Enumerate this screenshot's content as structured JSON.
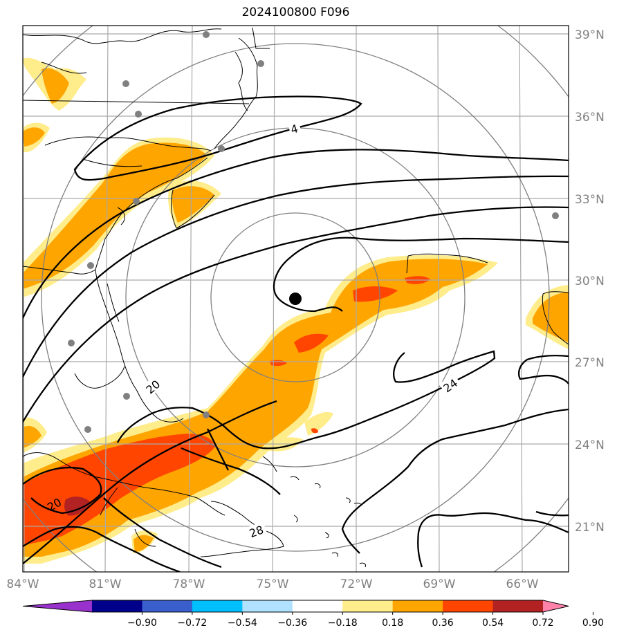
{
  "title": "2024100800 F096",
  "map": {
    "lon_ticks": [
      "84°W",
      "81°W",
      "78°W",
      "75°W",
      "72°W",
      "69°W",
      "66°W"
    ],
    "lat_ticks": [
      "39°N",
      "36°N",
      "33°N",
      "30°N",
      "27°N",
      "24°N",
      "21°N"
    ],
    "center_marker": {
      "lon": -74.2,
      "lat": 29.2
    },
    "contour_labels": [
      "4",
      "20",
      "24",
      "28",
      "20"
    ],
    "grid": true
  },
  "colorbar": {
    "ticks": [
      "−0.90",
      "−0.72",
      "−0.54",
      "−0.36",
      "−0.18",
      "0.18",
      "0.36",
      "0.54",
      "0.72",
      "0.90"
    ],
    "colors": [
      "#9932CC",
      "#00008B",
      "#3A5FCD",
      "#00BFFF",
      "#B0E2FF",
      "#FFFFFF",
      "#FFEC8B",
      "#FFA500",
      "#FF4500",
      "#B22222",
      "#FF82AB"
    ]
  },
  "colors": {
    "field_light": "#FFEC8B",
    "field_mid": "#FFA500",
    "field_high": "#FF4500",
    "field_max": "#B22222",
    "grid": "#A9A9A9",
    "station": "#808080"
  }
}
